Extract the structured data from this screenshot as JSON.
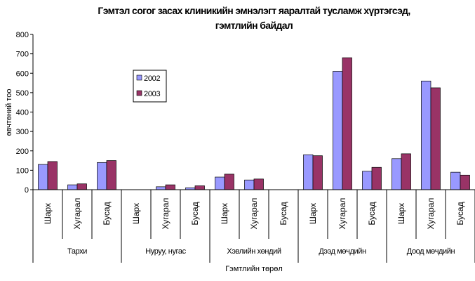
{
  "chart_data": {
    "type": "bar",
    "title_lines": [
      "Гэмтэл согог засах клиникийн эмнэлэгт яаралтай тусламж хүртэгсэд,",
      "гэмтлийн байдал"
    ],
    "xlabel": "Гэмтлийн төрөл",
    "ylabel": "өвчтөний тоо",
    "ylim": [
      0,
      800
    ],
    "yticks": [
      0,
      100,
      200,
      300,
      400,
      500,
      600,
      700,
      800
    ],
    "groups": [
      {
        "label": "Тархи",
        "categories": [
          "Шарх",
          "Хугарал",
          "Бусад"
        ]
      },
      {
        "label": "Нуруу, нугас",
        "categories": [
          "Шарх",
          "Хугарал",
          "Бусад"
        ]
      },
      {
        "label": "Хэвлийн хөндий",
        "categories": [
          "Шарх",
          "Хугарал",
          "Бусад"
        ]
      },
      {
        "label": "Дээд мөчдийн",
        "categories": [
          "Шарх",
          "Хугарал",
          "Бусад"
        ]
      },
      {
        "label": "Доод мөчдийн",
        "categories": [
          "Шарх",
          "Хугарал",
          "Бусад"
        ]
      }
    ],
    "categories": [
      "Шарх",
      "Хугарал",
      "Бусад",
      "Шарх",
      "Хугарал",
      "Бусад",
      "Шарх",
      "Хугарал",
      "Бусад",
      "Шарх",
      "Хугарал",
      "Бусад",
      "Шарх",
      "Хугарал",
      "Бусад"
    ],
    "series": [
      {
        "name": "2002",
        "color": "#9999ff",
        "values": [
          130,
          25,
          140,
          0,
          15,
          10,
          65,
          50,
          0,
          180,
          610,
          95,
          160,
          560,
          90
        ]
      },
      {
        "name": "2003",
        "color": "#993366",
        "values": [
          145,
          30,
          150,
          0,
          25,
          20,
          80,
          55,
          0,
          175,
          680,
          115,
          185,
          525,
          75
        ]
      }
    ],
    "legend_position": "inside-top-left",
    "grid": false
  }
}
